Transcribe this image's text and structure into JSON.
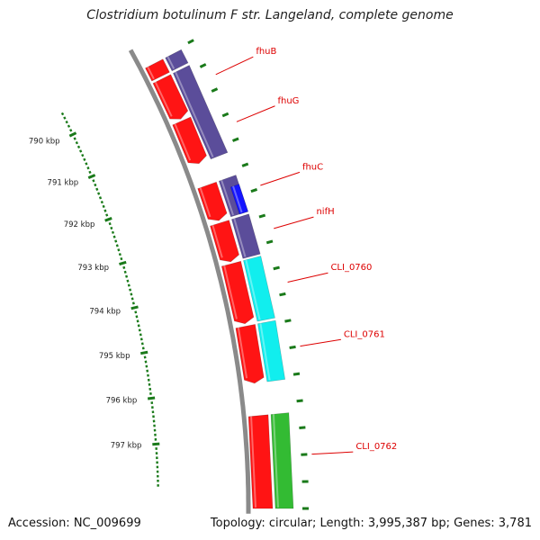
{
  "title": "Clostridium botulinum F str. Langeland, complete genome",
  "footer": {
    "accession": "Accession: NC_009699",
    "summary": "Topology: circular; Length: 3,995,387 bp; Genes: 3,781"
  },
  "colors": {
    "background": "#ffffff",
    "backbone": "#8a8a8a",
    "scale_ticks": "#1a7a1a",
    "label_leader": "#dd0000",
    "cds_reverse": "#ff1414",
    "feature_tier_purple": "#5b4d9a",
    "feature_tier_blue": "#1515ff",
    "feature_tier_cyan": "#11eeee",
    "feature_tier_green": "#33bb33"
  },
  "scale": {
    "unit": "kbp",
    "major_ticks_kbp": [
      790,
      791,
      792,
      793,
      794,
      795,
      796,
      797
    ],
    "labels": [
      "790 kbp",
      "791 kbp",
      "792 kbp",
      "793 kbp",
      "794 kbp",
      "795 kbp",
      "796 kbp",
      "797 kbp"
    ],
    "minor_per_major": 10,
    "visible_range_kbp": [
      789.55,
      798.4
    ]
  },
  "features": [
    {
      "strand": "reverse",
      "start_kbp": 789.45,
      "end_kbp": 789.73,
      "color": "cds_reverse",
      "partial": true
    },
    {
      "strand": "reverse",
      "start_kbp": 789.78,
      "end_kbp": 790.64,
      "color": "cds_reverse"
    },
    {
      "strand": "reverse",
      "start_kbp": 790.68,
      "end_kbp": 791.57,
      "color": "cds_reverse"
    },
    {
      "strand": "reverse",
      "start_kbp": 792.02,
      "end_kbp": 792.74,
      "color": "cds_reverse"
    },
    {
      "strand": "reverse",
      "start_kbp": 792.79,
      "end_kbp": 793.57,
      "color": "cds_reverse"
    },
    {
      "strand": "reverse",
      "start_kbp": 793.61,
      "end_kbp": 794.8,
      "color": "cds_reverse"
    },
    {
      "strand": "reverse",
      "start_kbp": 794.85,
      "end_kbp": 795.97,
      "color": "cds_reverse"
    },
    {
      "strand": "reverse",
      "start_kbp": 796.6,
      "end_kbp": 798.4,
      "color": "cds_reverse",
      "partial": true
    },
    {
      "strand": "tier",
      "start_kbp": 789.45,
      "end_kbp": 789.73,
      "color": "feature_tier_purple",
      "partial": true
    },
    {
      "strand": "tier",
      "start_kbp": 789.78,
      "end_kbp": 791.57,
      "color": "feature_tier_purple"
    },
    {
      "strand": "tier",
      "start_kbp": 792.02,
      "end_kbp": 792.74,
      "color": "feature_tier_purple"
    },
    {
      "strand": "tier2",
      "start_kbp": 792.2,
      "end_kbp": 792.74,
      "color": "feature_tier_blue"
    },
    {
      "strand": "tier",
      "start_kbp": 792.79,
      "end_kbp": 793.57,
      "color": "feature_tier_purple"
    },
    {
      "strand": "tier",
      "start_kbp": 793.61,
      "end_kbp": 794.8,
      "color": "feature_tier_cyan"
    },
    {
      "strand": "tier",
      "start_kbp": 794.85,
      "end_kbp": 795.97,
      "color": "feature_tier_cyan"
    },
    {
      "strand": "tier",
      "start_kbp": 796.6,
      "end_kbp": 798.4,
      "color": "feature_tier_green",
      "partial": true
    }
  ],
  "gene_labels": [
    {
      "name": "fhuB",
      "at_kbp": 790.15
    },
    {
      "name": "fhuG",
      "at_kbp": 791.1
    },
    {
      "name": "fhuC",
      "at_kbp": 792.35
    },
    {
      "name": "nifH",
      "at_kbp": 793.18
    },
    {
      "name": "CLI_0760",
      "at_kbp": 794.2
    },
    {
      "name": "CLI_0761",
      "at_kbp": 795.4
    },
    {
      "name": "CLI_0762",
      "at_kbp": 797.4
    }
  ]
}
